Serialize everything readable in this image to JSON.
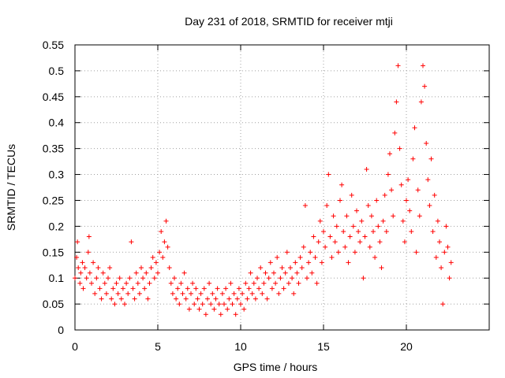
{
  "chart_data": {
    "type": "scatter",
    "title": "Day 231 of 2018, SRMTID for receiver mtji",
    "xlabel": "GPS time / hours",
    "ylabel": "SRMTID / TECUs",
    "xlim": [
      0,
      25
    ],
    "ylim": [
      0,
      0.55
    ],
    "xticks": [
      0,
      5,
      10,
      15,
      20
    ],
    "xtick_labels": [
      "0",
      "5",
      "10",
      "15",
      "20"
    ],
    "yticks": [
      0,
      0.05,
      0.1,
      0.15,
      0.2,
      0.25,
      0.3,
      0.35,
      0.4,
      0.45,
      0.5,
      0.55
    ],
    "ytick_labels": [
      "0",
      "0.05",
      "0.1",
      "0.15",
      "0.2",
      "0.25",
      "0.3",
      "0.35",
      "0.4",
      "0.45",
      "0.5",
      "0.55"
    ],
    "grid": true,
    "legend": "none",
    "marker": "+",
    "color": "#ff0000",
    "series": [
      {
        "name": "SRMTID",
        "points": [
          [
            0.0,
            0.1
          ],
          [
            0.1,
            0.14
          ],
          [
            0.15,
            0.17
          ],
          [
            0.2,
            0.12
          ],
          [
            0.3,
            0.09
          ],
          [
            0.35,
            0.11
          ],
          [
            0.45,
            0.13
          ],
          [
            0.5,
            0.08
          ],
          [
            0.6,
            0.12
          ],
          [
            0.7,
            0.1
          ],
          [
            0.8,
            0.15
          ],
          [
            0.85,
            0.18
          ],
          [
            0.9,
            0.11
          ],
          [
            1.0,
            0.09
          ],
          [
            1.1,
            0.13
          ],
          [
            1.2,
            0.07
          ],
          [
            1.3,
            0.1
          ],
          [
            1.4,
            0.12
          ],
          [
            1.5,
            0.08
          ],
          [
            1.6,
            0.06
          ],
          [
            1.7,
            0.11
          ],
          [
            1.8,
            0.09
          ],
          [
            1.9,
            0.07
          ],
          [
            2.0,
            0.1
          ],
          [
            2.1,
            0.12
          ],
          [
            2.2,
            0.06
          ],
          [
            2.3,
            0.08
          ],
          [
            2.4,
            0.05
          ],
          [
            2.5,
            0.09
          ],
          [
            2.6,
            0.07
          ],
          [
            2.7,
            0.1
          ],
          [
            2.8,
            0.06
          ],
          [
            2.9,
            0.08
          ],
          [
            3.0,
            0.05
          ],
          [
            3.1,
            0.09
          ],
          [
            3.2,
            0.07
          ],
          [
            3.3,
            0.1
          ],
          [
            3.4,
            0.17
          ],
          [
            3.5,
            0.08
          ],
          [
            3.6,
            0.06
          ],
          [
            3.7,
            0.11
          ],
          [
            3.8,
            0.09
          ],
          [
            3.9,
            0.07
          ],
          [
            4.0,
            0.12
          ],
          [
            4.1,
            0.1
          ],
          [
            4.2,
            0.08
          ],
          [
            4.3,
            0.11
          ],
          [
            4.4,
            0.06
          ],
          [
            4.5,
            0.09
          ],
          [
            4.6,
            0.12
          ],
          [
            4.7,
            0.14
          ],
          [
            4.8,
            0.1
          ],
          [
            4.9,
            0.13
          ],
          [
            5.0,
            0.11
          ],
          [
            5.1,
            0.15
          ],
          [
            5.2,
            0.19
          ],
          [
            5.3,
            0.14
          ],
          [
            5.4,
            0.17
          ],
          [
            5.5,
            0.21
          ],
          [
            5.6,
            0.16
          ],
          [
            5.7,
            0.12
          ],
          [
            5.8,
            0.09
          ],
          [
            5.9,
            0.07
          ],
          [
            6.0,
            0.1
          ],
          [
            6.1,
            0.06
          ],
          [
            6.2,
            0.08
          ],
          [
            6.3,
            0.05
          ],
          [
            6.4,
            0.09
          ],
          [
            6.5,
            0.07
          ],
          [
            6.6,
            0.11
          ],
          [
            6.7,
            0.06
          ],
          [
            6.8,
            0.08
          ],
          [
            6.9,
            0.04
          ],
          [
            7.0,
            0.07
          ],
          [
            7.1,
            0.09
          ],
          [
            7.2,
            0.05
          ],
          [
            7.3,
            0.08
          ],
          [
            7.4,
            0.06
          ],
          [
            7.5,
            0.04
          ],
          [
            7.6,
            0.07
          ],
          [
            7.7,
            0.05
          ],
          [
            7.8,
            0.08
          ],
          [
            7.9,
            0.03
          ],
          [
            8.0,
            0.06
          ],
          [
            8.1,
            0.09
          ],
          [
            8.2,
            0.05
          ],
          [
            8.3,
            0.07
          ],
          [
            8.4,
            0.04
          ],
          [
            8.5,
            0.06
          ],
          [
            8.6,
            0.08
          ],
          [
            8.7,
            0.05
          ],
          [
            8.8,
            0.03
          ],
          [
            8.9,
            0.07
          ],
          [
            9.0,
            0.05
          ],
          [
            9.1,
            0.08
          ],
          [
            9.2,
            0.04
          ],
          [
            9.3,
            0.06
          ],
          [
            9.4,
            0.09
          ],
          [
            9.5,
            0.05
          ],
          [
            9.6,
            0.07
          ],
          [
            9.7,
            0.03
          ],
          [
            9.8,
            0.06
          ],
          [
            9.9,
            0.08
          ],
          [
            10.0,
            0.05
          ],
          [
            10.1,
            0.07
          ],
          [
            10.2,
            0.04
          ],
          [
            10.3,
            0.09
          ],
          [
            10.4,
            0.06
          ],
          [
            10.5,
            0.08
          ],
          [
            10.6,
            0.11
          ],
          [
            10.7,
            0.07
          ],
          [
            10.8,
            0.09
          ],
          [
            10.9,
            0.06
          ],
          [
            11.0,
            0.1
          ],
          [
            11.1,
            0.08
          ],
          [
            11.2,
            0.12
          ],
          [
            11.3,
            0.07
          ],
          [
            11.4,
            0.09
          ],
          [
            11.5,
            0.11
          ],
          [
            11.6,
            0.06
          ],
          [
            11.7,
            0.1
          ],
          [
            11.8,
            0.13
          ],
          [
            11.9,
            0.08
          ],
          [
            12.0,
            0.11
          ],
          [
            12.1,
            0.09
          ],
          [
            12.2,
            0.14
          ],
          [
            12.3,
            0.07
          ],
          [
            12.4,
            0.1
          ],
          [
            12.5,
            0.12
          ],
          [
            12.6,
            0.08
          ],
          [
            12.7,
            0.11
          ],
          [
            12.8,
            0.15
          ],
          [
            12.9,
            0.09
          ],
          [
            13.0,
            0.12
          ],
          [
            13.1,
            0.1
          ],
          [
            13.2,
            0.07
          ],
          [
            13.3,
            0.13
          ],
          [
            13.4,
            0.11
          ],
          [
            13.5,
            0.09
          ],
          [
            13.6,
            0.14
          ],
          [
            13.7,
            0.12
          ],
          [
            13.8,
            0.16
          ],
          [
            13.9,
            0.24
          ],
          [
            14.0,
            0.1
          ],
          [
            14.1,
            0.13
          ],
          [
            14.2,
            0.15
          ],
          [
            14.3,
            0.11
          ],
          [
            14.4,
            0.18
          ],
          [
            14.5,
            0.14
          ],
          [
            14.6,
            0.09
          ],
          [
            14.7,
            0.17
          ],
          [
            14.8,
            0.21
          ],
          [
            14.9,
            0.13
          ],
          [
            15.0,
            0.19
          ],
          [
            15.1,
            0.16
          ],
          [
            15.2,
            0.24
          ],
          [
            15.3,
            0.3
          ],
          [
            15.4,
            0.18
          ],
          [
            15.5,
            0.14
          ],
          [
            15.6,
            0.22
          ],
          [
            15.7,
            0.17
          ],
          [
            15.8,
            0.2
          ],
          [
            15.9,
            0.15
          ],
          [
            16.0,
            0.25
          ],
          [
            16.1,
            0.28
          ],
          [
            16.2,
            0.19
          ],
          [
            16.3,
            0.16
          ],
          [
            16.4,
            0.22
          ],
          [
            16.5,
            0.13
          ],
          [
            16.6,
            0.18
          ],
          [
            16.7,
            0.26
          ],
          [
            16.8,
            0.2
          ],
          [
            16.9,
            0.15
          ],
          [
            17.0,
            0.23
          ],
          [
            17.1,
            0.19
          ],
          [
            17.2,
            0.17
          ],
          [
            17.3,
            0.21
          ],
          [
            17.4,
            0.1
          ],
          [
            17.5,
            0.18
          ],
          [
            17.6,
            0.31
          ],
          [
            17.7,
            0.24
          ],
          [
            17.8,
            0.16
          ],
          [
            17.9,
            0.22
          ],
          [
            18.0,
            0.19
          ],
          [
            18.1,
            0.14
          ],
          [
            18.2,
            0.25
          ],
          [
            18.3,
            0.2
          ],
          [
            18.4,
            0.17
          ],
          [
            18.5,
            0.12
          ],
          [
            18.6,
            0.21
          ],
          [
            18.7,
            0.26
          ],
          [
            18.8,
            0.19
          ],
          [
            18.9,
            0.3
          ],
          [
            19.0,
            0.34
          ],
          [
            19.1,
            0.27
          ],
          [
            19.2,
            0.22
          ],
          [
            19.3,
            0.38
          ],
          [
            19.4,
            0.44
          ],
          [
            19.5,
            0.51
          ],
          [
            19.6,
            0.35
          ],
          [
            19.7,
            0.28
          ],
          [
            19.8,
            0.21
          ],
          [
            19.9,
            0.17
          ],
          [
            20.0,
            0.25
          ],
          [
            20.1,
            0.29
          ],
          [
            20.2,
            0.23
          ],
          [
            20.3,
            0.19
          ],
          [
            20.4,
            0.33
          ],
          [
            20.5,
            0.39
          ],
          [
            20.6,
            0.15
          ],
          [
            20.7,
            0.27
          ],
          [
            20.8,
            0.22
          ],
          [
            20.9,
            0.44
          ],
          [
            21.0,
            0.51
          ],
          [
            21.1,
            0.47
          ],
          [
            21.2,
            0.36
          ],
          [
            21.3,
            0.29
          ],
          [
            21.4,
            0.24
          ],
          [
            21.5,
            0.33
          ],
          [
            21.6,
            0.19
          ],
          [
            21.7,
            0.26
          ],
          [
            21.8,
            0.14
          ],
          [
            21.9,
            0.21
          ],
          [
            22.0,
            0.17
          ],
          [
            22.1,
            0.12
          ],
          [
            22.2,
            0.05
          ],
          [
            22.3,
            0.15
          ],
          [
            22.4,
            0.2
          ],
          [
            22.5,
            0.16
          ],
          [
            22.6,
            0.1
          ],
          [
            22.7,
            0.13
          ]
        ]
      }
    ]
  }
}
